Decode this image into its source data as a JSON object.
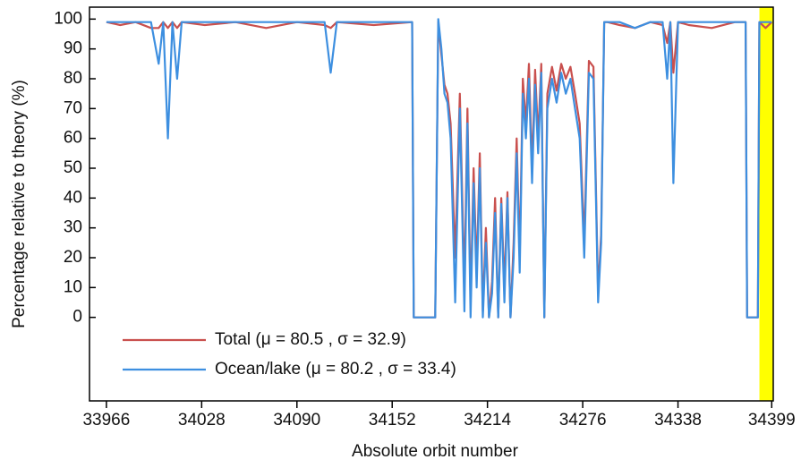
{
  "chart_data": {
    "type": "line",
    "xlabel": "Absolute orbit number",
    "ylabel": "Percentage relative to theory (%)",
    "x": [
      33966,
      33975,
      33985,
      33995,
      34000,
      34003,
      34006,
      34009,
      34012,
      34015,
      34030,
      34050,
      34070,
      34090,
      34108,
      34112,
      34116,
      34140,
      34165,
      34166,
      34180,
      34182,
      34184,
      34186,
      34188,
      34190,
      34193,
      34196,
      34199,
      34201,
      34203,
      34205,
      34207,
      34209,
      34211,
      34213,
      34215,
      34217,
      34219,
      34221,
      34223,
      34225,
      34227,
      34229,
      34231,
      34233,
      34235,
      34237,
      34239,
      34241,
      34243,
      34245,
      34247,
      34249,
      34251,
      34253,
      34256,
      34259,
      34262,
      34265,
      34268,
      34271,
      34274,
      34277,
      34280,
      34283,
      34286,
      34288,
      34290,
      34292,
      34300,
      34310,
      34320,
      34328,
      34331,
      34333,
      34335,
      34338,
      34345,
      34360,
      34375,
      34382,
      34383,
      34390,
      34391,
      34395,
      34399
    ],
    "series": [
      {
        "name": "Total (μ = 80.5 , σ = 32.9)",
        "color": "#c9504e",
        "values": [
          99,
          98,
          99,
          97,
          97,
          99,
          97,
          99,
          97,
          99,
          98,
          99,
          97,
          99,
          98,
          97,
          99,
          98,
          99,
          0,
          0,
          99,
          88,
          78,
          75,
          65,
          20,
          75,
          10,
          70,
          5,
          50,
          15,
          55,
          2,
          30,
          0,
          12,
          40,
          0,
          40,
          10,
          42,
          0,
          25,
          60,
          20,
          80,
          65,
          85,
          50,
          83,
          60,
          85,
          0,
          75,
          84,
          76,
          85,
          80,
          84,
          75,
          65,
          25,
          86,
          84,
          8,
          28,
          99,
          99,
          98,
          97,
          99,
          98,
          92,
          99,
          82,
          99,
          98,
          97,
          99,
          99,
          0,
          0,
          99,
          97,
          99
        ]
      },
      {
        "name": "Ocean/lake (μ = 80.2 , σ = 33.4)",
        "color": "#3d8fe0",
        "values": [
          99,
          99,
          99,
          99,
          85,
          99,
          60,
          99,
          80,
          99,
          99,
          99,
          99,
          99,
          99,
          82,
          99,
          99,
          99,
          0,
          0,
          100,
          90,
          75,
          72,
          60,
          5,
          70,
          2,
          65,
          0,
          45,
          10,
          50,
          0,
          25,
          0,
          8,
          35,
          0,
          38,
          5,
          40,
          0,
          20,
          55,
          15,
          75,
          60,
          80,
          45,
          78,
          55,
          82,
          0,
          70,
          80,
          72,
          82,
          75,
          80,
          70,
          60,
          20,
          82,
          80,
          5,
          25,
          99,
          99,
          99,
          97,
          99,
          99,
          80,
          99,
          45,
          99,
          99,
          99,
          99,
          99,
          0,
          0,
          99,
          99,
          99
        ]
      }
    ],
    "xlim": [
      33955,
      34400
    ],
    "xticks": [
      33966,
      34028,
      34090,
      34152,
      34214,
      34276,
      34338,
      34399
    ],
    "ylim": [
      -28,
      104
    ],
    "yticks": [
      0,
      10,
      20,
      30,
      40,
      50,
      60,
      70,
      80,
      90,
      100
    ],
    "highlight": {
      "x0": 34391,
      "x1": 34400,
      "color": "#ffff00"
    },
    "legend": "lower left"
  }
}
